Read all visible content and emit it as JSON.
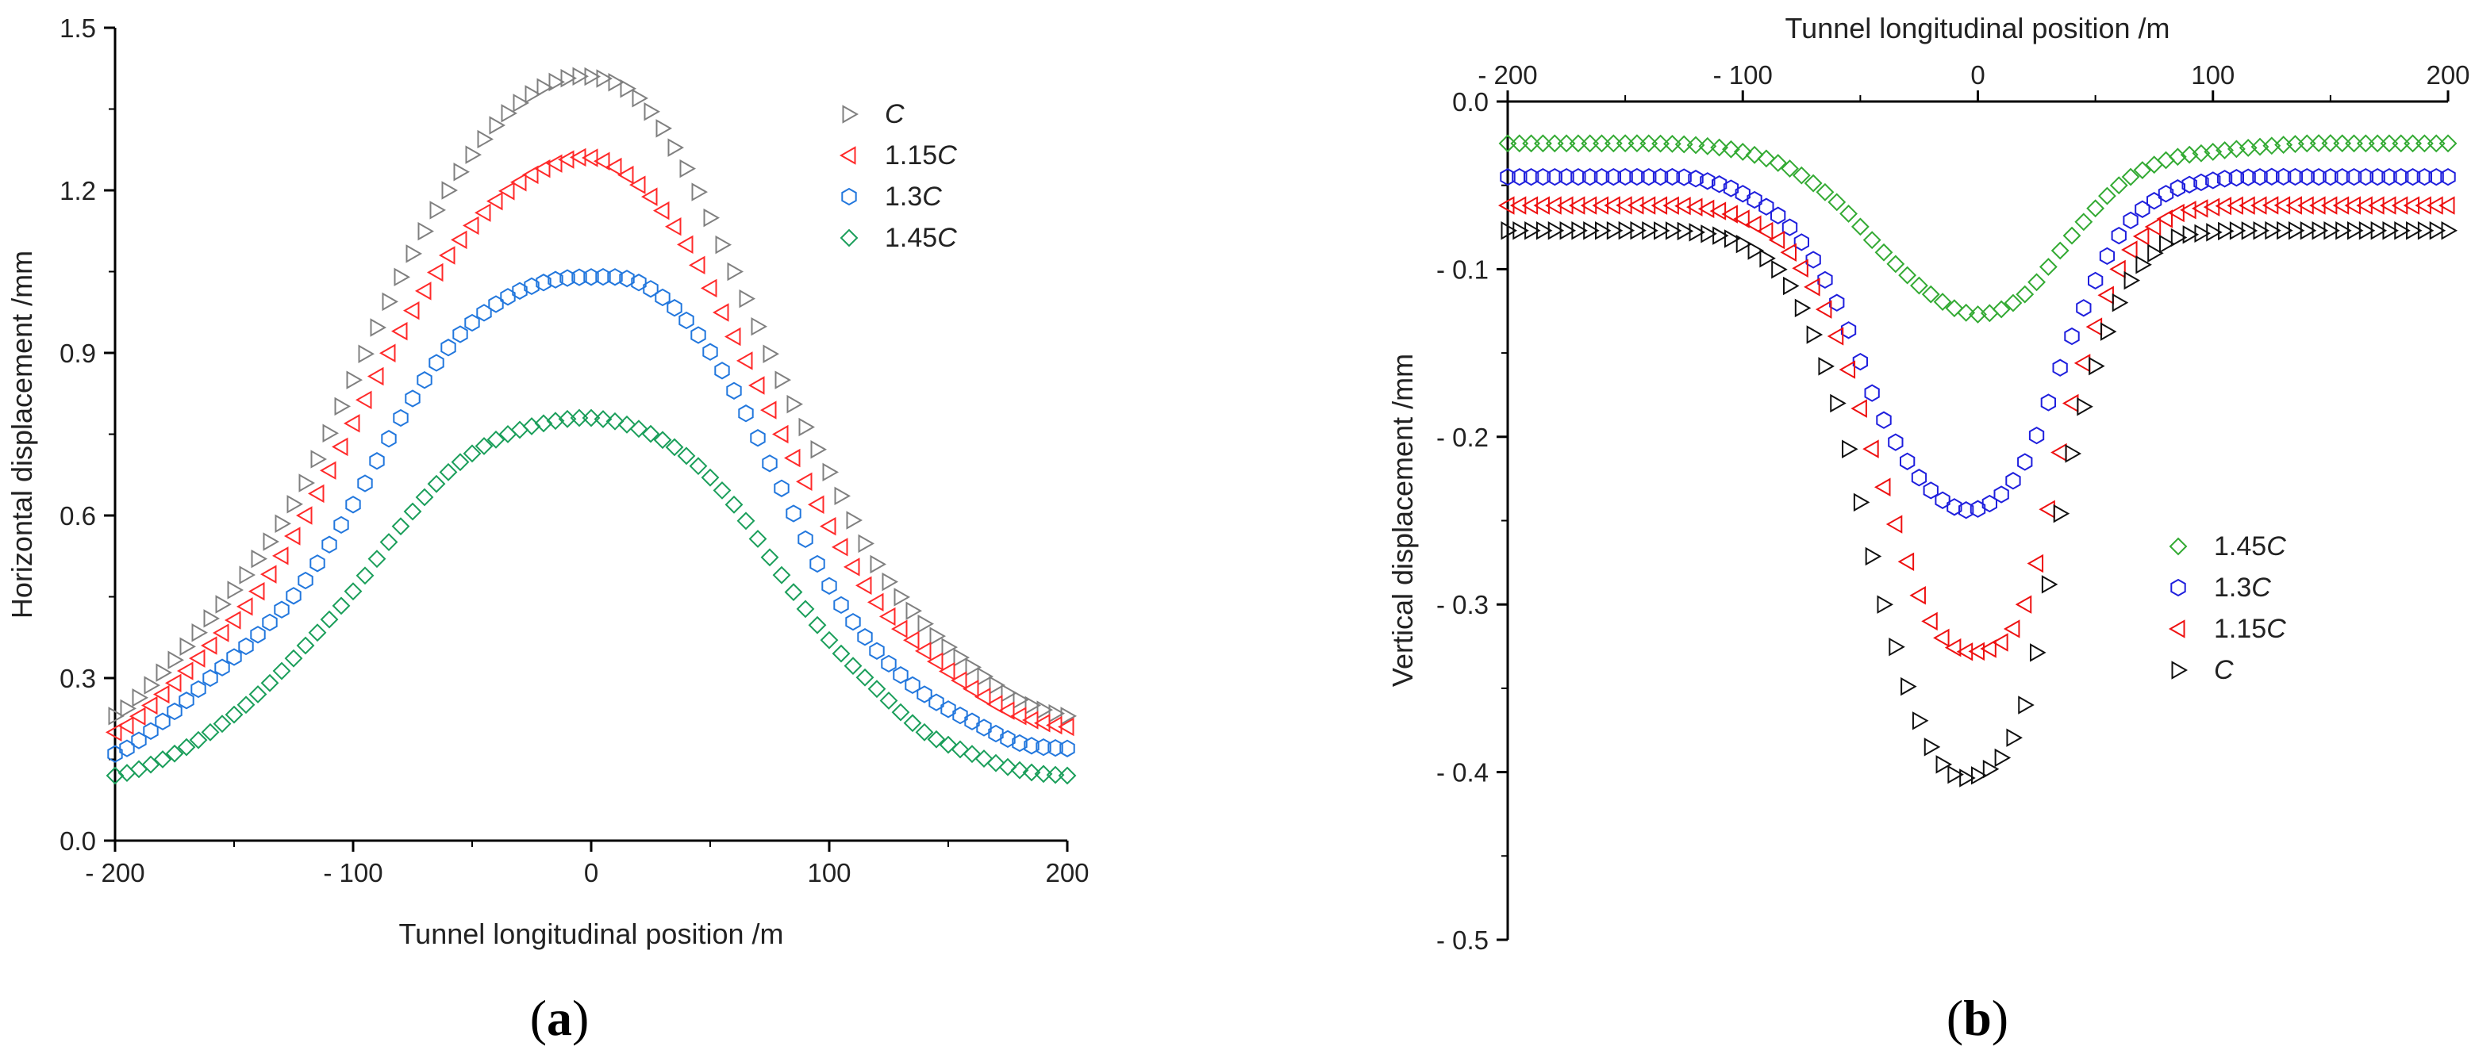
{
  "chart_data": [
    {
      "type": "scatter",
      "panel_label": "a",
      "xlabel": "Tunnel longitudinal position /m",
      "ylabel": "Horizontal  displacement /mm",
      "xlim": [
        -200,
        200
      ],
      "ylim": [
        0,
        1.5
      ],
      "xticks": [
        -200,
        -100,
        0,
        100,
        200
      ],
      "xtick_labels": [
        "- 200",
        "- 100",
        "0",
        "100",
        "200"
      ],
      "yticks": [
        0,
        0.3,
        0.6,
        0.9,
        1.2,
        1.5
      ],
      "ytick_labels": [
        "0.0",
        "0.3",
        "0.6",
        "0.9",
        "1.2",
        "1.5"
      ],
      "legend_position": "top-right",
      "x": [
        -200,
        -180,
        -160,
        -140,
        -120,
        -100,
        -80,
        -60,
        -40,
        -20,
        0,
        20,
        40,
        60,
        80,
        100,
        120,
        140,
        160,
        180,
        200
      ],
      "series": [
        {
          "name": "C",
          "name_prefix": "",
          "name_italic": "C",
          "marker": "triangle-right",
          "color": "#808080",
          "values": [
            0.23,
            0.31,
            0.41,
            0.52,
            0.66,
            0.85,
            1.04,
            1.2,
            1.32,
            1.39,
            1.41,
            1.37,
            1.24,
            1.05,
            0.85,
            0.68,
            0.51,
            0.4,
            0.32,
            0.26,
            0.23
          ]
        },
        {
          "name": "1.15C",
          "name_prefix": "1.15",
          "name_italic": "C",
          "marker": "triangle-left",
          "color": "#ff2a2a",
          "values": [
            0.2,
            0.27,
            0.36,
            0.46,
            0.6,
            0.77,
            0.94,
            1.08,
            1.18,
            1.24,
            1.26,
            1.21,
            1.1,
            0.93,
            0.75,
            0.58,
            0.44,
            0.35,
            0.28,
            0.23,
            0.21
          ]
        },
        {
          "name": "1.3C",
          "name_prefix": "1.3",
          "name_italic": "C",
          "marker": "hexagon",
          "color": "#2277dd",
          "values": [
            0.16,
            0.22,
            0.3,
            0.38,
            0.48,
            0.62,
            0.78,
            0.91,
            0.99,
            1.03,
            1.04,
            1.03,
            0.96,
            0.83,
            0.65,
            0.47,
            0.35,
            0.27,
            0.22,
            0.18,
            0.17
          ]
        },
        {
          "name": "1.45C",
          "name_prefix": "1.45",
          "name_italic": "C",
          "marker": "diamond",
          "color": "#1a9e5a",
          "values": [
            0.12,
            0.15,
            0.2,
            0.27,
            0.36,
            0.46,
            0.58,
            0.68,
            0.74,
            0.77,
            0.78,
            0.76,
            0.71,
            0.62,
            0.49,
            0.37,
            0.28,
            0.2,
            0.16,
            0.13,
            0.12
          ]
        }
      ]
    },
    {
      "type": "scatter",
      "panel_label": "b",
      "xlabel": "Tunnel longitudinal position /m",
      "xlabel_position": "top",
      "ylabel": "Vertical displacement /mm",
      "xlim": [
        -200,
        200
      ],
      "ylim": [
        -0.5,
        0.0
      ],
      "xticks": [
        -200,
        -100,
        0,
        100,
        200
      ],
      "xtick_labels": [
        "- 200",
        "- 100",
        "0",
        "100",
        "200"
      ],
      "yticks": [
        0,
        -0.1,
        -0.2,
        -0.3,
        -0.4,
        -0.5
      ],
      "ytick_labels": [
        "0.0",
        "- 0.1",
        "- 0.2",
        "- 0.3",
        "- 0.4",
        "- 0.5"
      ],
      "legend_position": "center-right",
      "x": [
        -200,
        -180,
        -160,
        -140,
        -120,
        -100,
        -80,
        -60,
        -40,
        -20,
        0,
        20,
        40,
        60,
        80,
        100,
        120,
        140,
        160,
        180,
        200
      ],
      "series": [
        {
          "name": "1.45C",
          "name_prefix": "1.45",
          "name_italic": "C",
          "marker": "diamond",
          "color": "#33aa33",
          "values": [
            -0.025,
            -0.025,
            -0.025,
            -0.025,
            -0.026,
            -0.03,
            -0.04,
            -0.06,
            -0.09,
            -0.115,
            -0.127,
            -0.115,
            -0.08,
            -0.05,
            -0.035,
            -0.03,
            -0.027,
            -0.025,
            -0.025,
            -0.025,
            -0.025
          ]
        },
        {
          "name": "1.3C",
          "name_prefix": "1.3",
          "name_italic": "C",
          "marker": "hexagon",
          "color": "#1f1fdd",
          "values": [
            -0.045,
            -0.045,
            -0.045,
            -0.045,
            -0.046,
            -0.055,
            -0.075,
            -0.12,
            -0.19,
            -0.232,
            -0.243,
            -0.215,
            -0.14,
            -0.08,
            -0.055,
            -0.047,
            -0.045,
            -0.045,
            -0.045,
            -0.045,
            -0.045
          ]
        },
        {
          "name": "1.15C",
          "name_prefix": "1.15",
          "name_italic": "C",
          "marker": "triangle-left",
          "color": "#ee1111",
          "values": [
            -0.062,
            -0.062,
            -0.062,
            -0.062,
            -0.063,
            -0.07,
            -0.09,
            -0.14,
            -0.23,
            -0.31,
            -0.328,
            -0.3,
            -0.18,
            -0.1,
            -0.07,
            -0.063,
            -0.062,
            -0.062,
            -0.062,
            -0.062,
            -0.062
          ]
        },
        {
          "name": "C",
          "name_prefix": "",
          "name_italic": "C",
          "marker": "triangle-right",
          "color": "#111111",
          "values": [
            -0.077,
            -0.077,
            -0.077,
            -0.077,
            -0.078,
            -0.085,
            -0.11,
            -0.18,
            -0.3,
            -0.385,
            -0.402,
            -0.36,
            -0.21,
            -0.12,
            -0.085,
            -0.078,
            -0.077,
            -0.077,
            -0.077,
            -0.077,
            -0.077
          ]
        }
      ]
    }
  ]
}
